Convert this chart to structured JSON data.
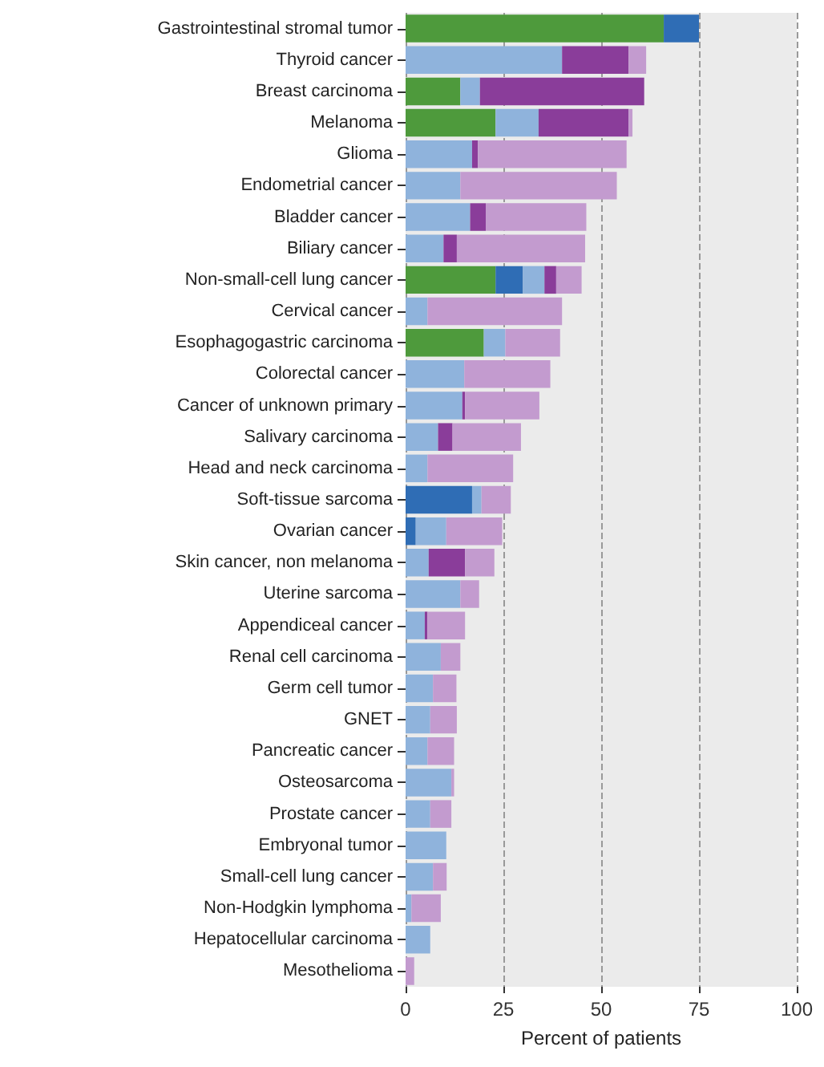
{
  "chart_data": {
    "type": "bar",
    "orientation": "horizontal",
    "stacked": true,
    "xlabel": "Percent of patients",
    "categories": [
      "Gastrointestinal stromal tumor",
      "Thyroid cancer",
      "Breast carcinoma",
      "Melanoma",
      "Glioma",
      "Endometrial cancer",
      "Bladder cancer",
      "Biliary cancer",
      "Non-small-cell lung cancer",
      "Cervical cancer",
      "Esophagogastric carcinoma",
      "Colorectal cancer",
      "Cancer of unknown primary",
      "Salivary carcinoma",
      "Head and neck carcinoma",
      "Soft-tissue sarcoma",
      "Ovarian cancer",
      "Skin cancer, non melanoma",
      "Uterine sarcoma",
      "Appendiceal cancer",
      "Renal cell carcinoma",
      "Germ cell tumor",
      "GNET",
      "Pancreatic cancer",
      "Osteosarcoma",
      "Prostate cancer",
      "Embryonal tumor",
      "Small-cell lung cancer",
      "Non-Hodgkin lymphoma",
      "Hepatocellular carcinoma",
      "Mesothelioma"
    ],
    "series": [
      {
        "color": "#4e9a3c",
        "values": [
          66,
          null,
          14,
          23,
          null,
          null,
          null,
          null,
          23,
          null,
          20,
          null,
          null,
          null,
          null,
          null,
          null,
          null,
          null,
          null,
          null,
          null,
          null,
          null,
          null,
          null,
          null,
          null,
          null,
          null,
          null
        ]
      },
      {
        "color": "#2f6db5",
        "values": [
          9,
          null,
          null,
          null,
          null,
          null,
          null,
          null,
          7,
          null,
          null,
          null,
          null,
          null,
          null,
          17,
          2.6,
          null,
          null,
          null,
          null,
          null,
          null,
          null,
          null,
          null,
          null,
          null,
          null,
          null,
          null
        ]
      },
      {
        "color": "#8fb3dc",
        "values": [
          null,
          40,
          5,
          11,
          17,
          14,
          16.5,
          9.7,
          5.5,
          5.6,
          5.5,
          15,
          14.5,
          8.3,
          5.6,
          2.4,
          7.8,
          5.9,
          14,
          4.9,
          9,
          7,
          6.3,
          5.6,
          11.7,
          6.3,
          10.4,
          7,
          1.5,
          6.3,
          null
        ]
      },
      {
        "color": "#8a3d9a",
        "values": [
          null,
          17,
          42,
          23,
          1.5,
          null,
          4,
          3.4,
          3,
          null,
          null,
          null,
          0.7,
          3.7,
          null,
          null,
          null,
          9.3,
          null,
          0.7,
          null,
          null,
          null,
          null,
          null,
          null,
          null,
          null,
          null,
          null,
          null
        ]
      },
      {
        "color": "#c39bcf",
        "values": [
          null,
          4.5,
          null,
          1,
          38,
          40,
          25.7,
          32.8,
          6.5,
          34.4,
          14,
          22,
          19,
          17.5,
          21.9,
          7.5,
          14.3,
          7.5,
          4.8,
          9.6,
          5,
          6,
          6.8,
          6.8,
          0.7,
          5.4,
          null,
          3.5,
          7.5,
          null,
          2.2
        ]
      }
    ],
    "xlim": [
      0,
      100
    ],
    "xticks": [
      0,
      25,
      50,
      75,
      100
    ],
    "grid": "x"
  }
}
